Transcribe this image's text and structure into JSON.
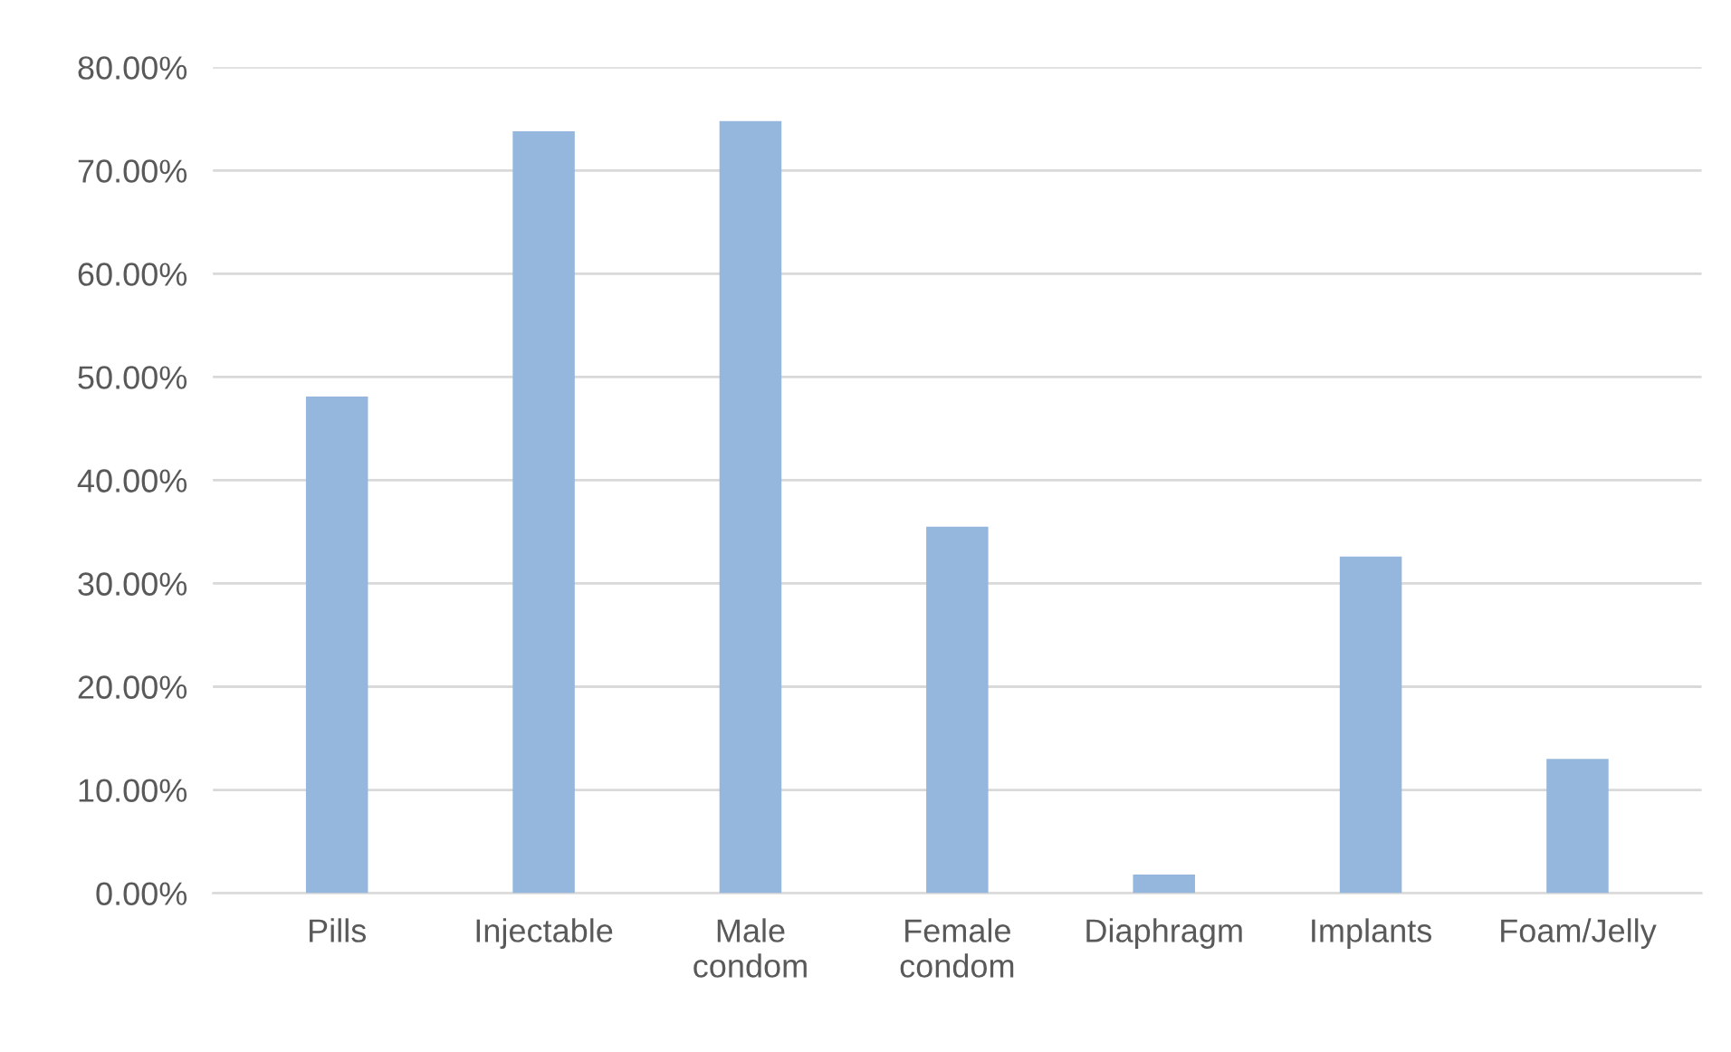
{
  "chart_data": {
    "type": "bar",
    "categories": [
      "Pills",
      "Injectable",
      "Male\ncondom",
      "Female\ncondom",
      "Diaphragm",
      "Implants",
      "Foam/Jelly"
    ],
    "values": [
      48.1,
      73.8,
      74.8,
      35.5,
      1.8,
      32.6,
      13.0
    ],
    "color": "#95b7de",
    "ylim": [
      0,
      80
    ],
    "yticks": [
      {
        "value": 0,
        "label": "0.00%"
      },
      {
        "value": 10,
        "label": "10.00%"
      },
      {
        "value": 20,
        "label": "20.00%"
      },
      {
        "value": 30,
        "label": "30.00%"
      },
      {
        "value": 40,
        "label": "40.00%"
      },
      {
        "value": 50,
        "label": "50.00%"
      },
      {
        "value": 60,
        "label": "60.00%"
      },
      {
        "value": 70,
        "label": "70.00%"
      },
      {
        "value": 80,
        "label": "80.00%"
      }
    ],
    "grid": "y"
  }
}
